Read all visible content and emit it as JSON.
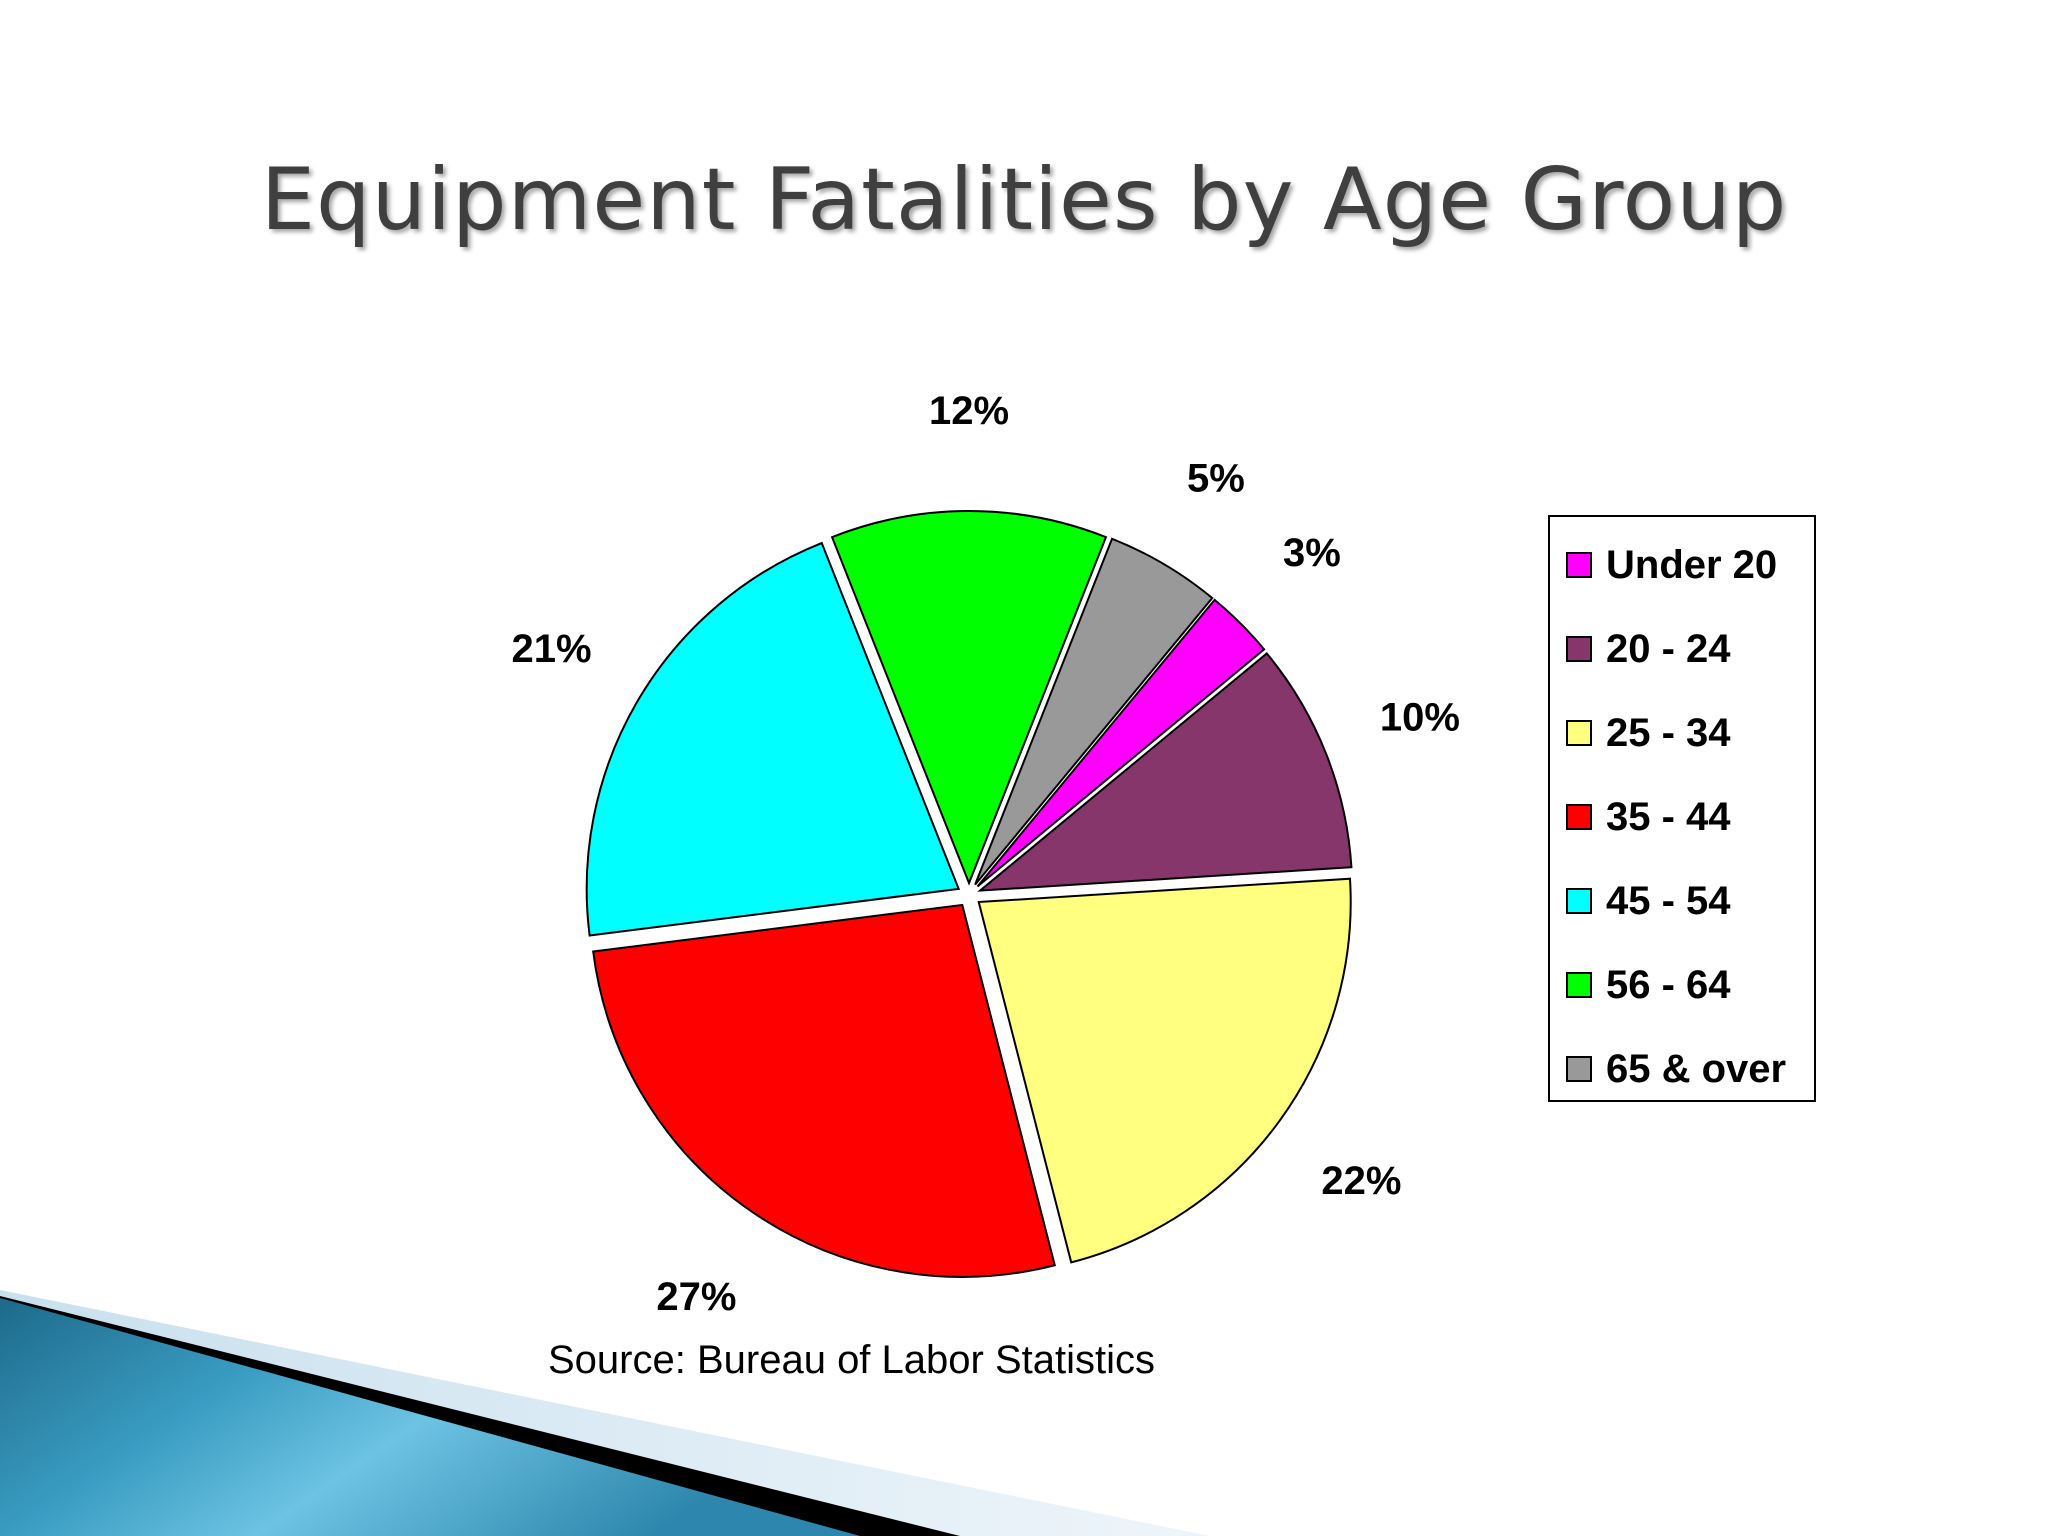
{
  "slide": {
    "title": "Equipment Fatalities by Age Group",
    "source": "Source: Bureau of Labor Statistics"
  },
  "chart_data": {
    "type": "pie",
    "categories": [
      "Under 20",
      "20 - 24",
      "25 - 34",
      "35 - 44",
      "45 - 54",
      "56 - 64",
      "65 & over"
    ],
    "values": [
      3,
      10,
      22,
      27,
      21,
      12,
      5
    ],
    "value_labels": [
      "3%",
      "10%",
      "22%",
      "27%",
      "21%",
      "12%",
      "5%"
    ],
    "unit": "%",
    "exploded": true,
    "legend_position": "right",
    "colors": {
      "Under 20": "#ff00ff",
      "20 - 24": "#86366a",
      "25 - 34": "#ffff80",
      "35 - 44": "#ff0000",
      "45 - 54": "#00ffff",
      "56 - 64": "#00ff00",
      "65 & over": "#999999"
    }
  },
  "theme": {
    "title_color": "#3f3f3f",
    "decoration_colors": [
      "#1f6f8f",
      "#5fb8d8",
      "#000000",
      "#d6e8f2"
    ]
  }
}
